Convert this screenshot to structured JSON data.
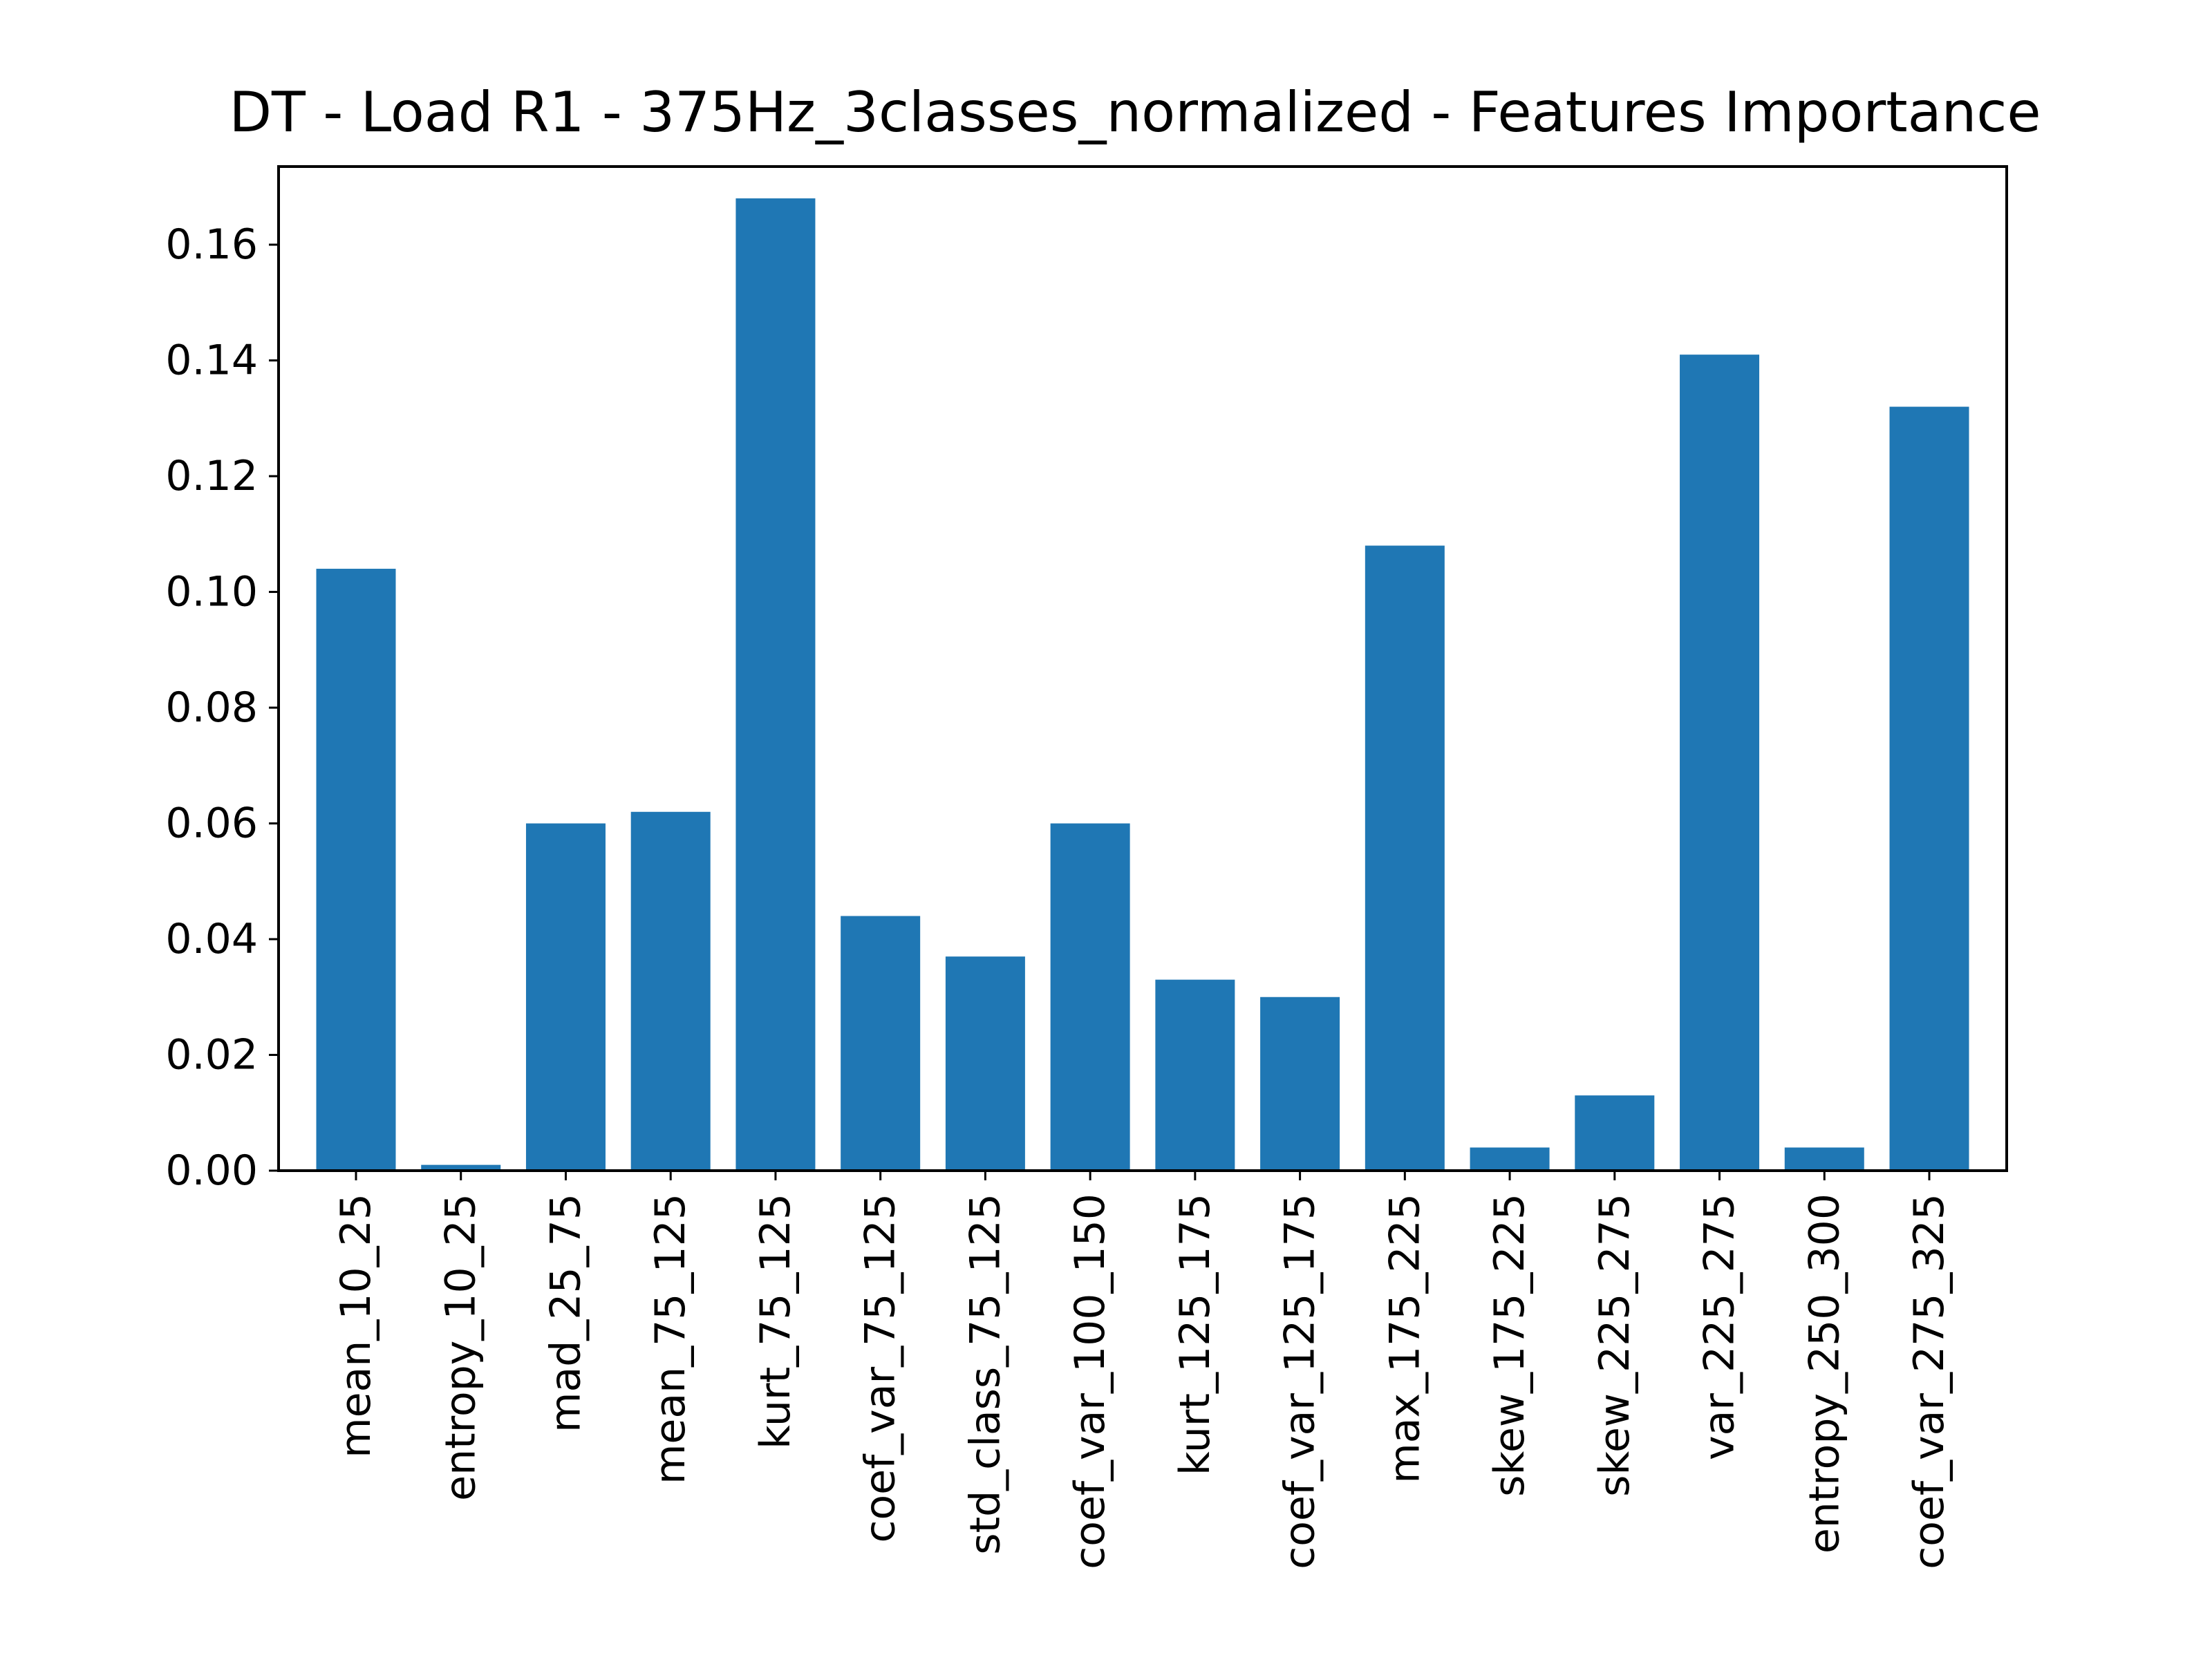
{
  "chart_data": {
    "type": "bar",
    "title": "DT - Load R1 - 375Hz_3classes_normalized - Features Importance",
    "xlabel": "",
    "ylabel": "",
    "categories": [
      "mean_10_25",
      "entropy_10_25",
      "mad_25_75",
      "mean_75_125",
      "kurt_75_125",
      "coef_var_75_125",
      "std_class_75_125",
      "coef_var_100_150",
      "kurt_125_175",
      "coef_var_125_175",
      "max_175_225",
      "skew_175_225",
      "skew_225_275",
      "var_225_275",
      "entropy_250_300",
      "coef_var_275_325"
    ],
    "values": [
      0.104,
      0.001,
      0.06,
      0.062,
      0.168,
      0.044,
      0.037,
      0.06,
      0.033,
      0.03,
      0.108,
      0.004,
      0.013,
      0.141,
      0.004,
      0.132
    ],
    "ylim": [
      0,
      0.1735
    ],
    "yticks": [
      0.0,
      0.02,
      0.04,
      0.06,
      0.08,
      0.1,
      0.12,
      0.14,
      0.16
    ],
    "ytick_labels": [
      "0.00",
      "0.02",
      "0.04",
      "0.06",
      "0.08",
      "0.10",
      "0.12",
      "0.14",
      "0.16"
    ],
    "bar_color": "#1f77b4",
    "grid": false,
    "legend": "none"
  }
}
